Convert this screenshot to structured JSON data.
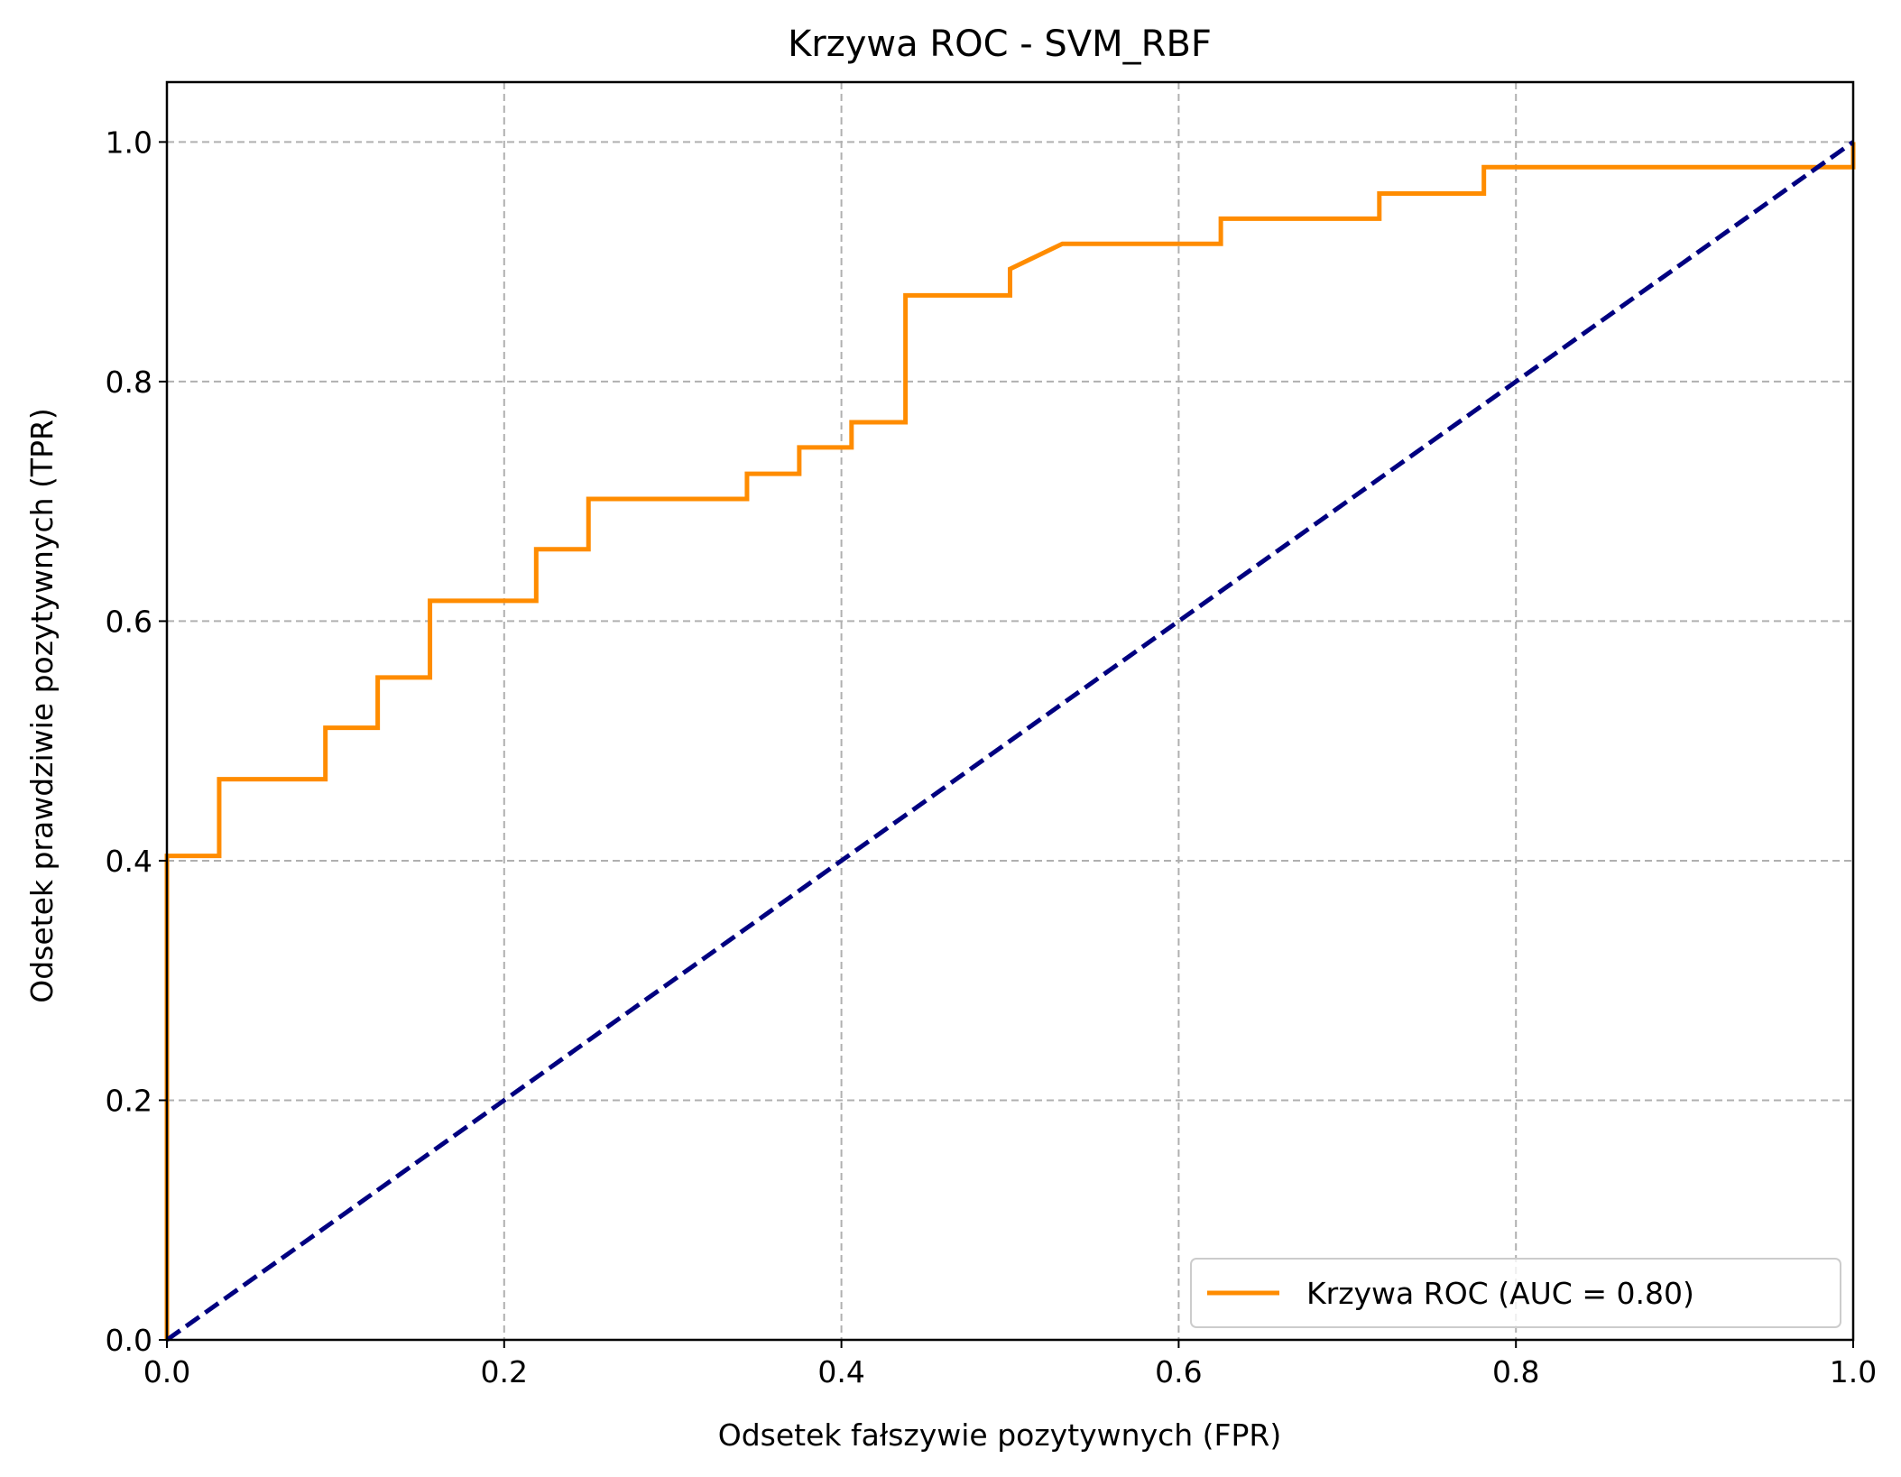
{
  "chart_data": {
    "type": "line",
    "title": "Krzywa ROC - SVM_RBF",
    "xlabel": "Odsetek fałszywie pozytywnych (FPR)",
    "ylabel": "Odsetek prawdziwie pozytywnych (TPR)",
    "xlim": [
      0.0,
      1.0
    ],
    "ylim": [
      0.0,
      1.05
    ],
    "x_ticks": [
      0.0,
      0.2,
      0.4,
      0.6,
      0.8,
      1.0
    ],
    "x_tick_labels": [
      "0.0",
      "0.2",
      "0.4",
      "0.6",
      "0.8",
      "1.0"
    ],
    "y_ticks": [
      0.0,
      0.2,
      0.4,
      0.6,
      0.8,
      1.0
    ],
    "y_tick_labels": [
      "0.0",
      "0.2",
      "0.4",
      "0.6",
      "0.8",
      "1.0"
    ],
    "grid": true,
    "legend_position": "lower right",
    "series": [
      {
        "name": "Krzywa ROC (AUC = 0.80)",
        "color": "#ff8c00",
        "style": "solid",
        "x": [
          0.0,
          0.0,
          0.031,
          0.031,
          0.094,
          0.094,
          0.125,
          0.125,
          0.156,
          0.156,
          0.219,
          0.219,
          0.25,
          0.25,
          0.344,
          0.344,
          0.375,
          0.375,
          0.406,
          0.406,
          0.438,
          0.438,
          0.5,
          0.5,
          0.531,
          0.625,
          0.625,
          0.719,
          0.719,
          0.781,
          0.781,
          1.0,
          1.0
        ],
        "y": [
          0.0,
          0.404,
          0.404,
          0.468,
          0.468,
          0.511,
          0.511,
          0.553,
          0.553,
          0.617,
          0.617,
          0.66,
          0.66,
          0.702,
          0.702,
          0.723,
          0.723,
          0.745,
          0.745,
          0.766,
          0.766,
          0.872,
          0.872,
          0.894,
          0.915,
          0.915,
          0.936,
          0.936,
          0.957,
          0.957,
          0.979,
          0.979,
          1.0
        ]
      },
      {
        "name": "",
        "color": "#000080",
        "style": "dashed",
        "x": [
          0.0,
          1.0
        ],
        "y": [
          0.0,
          1.0
        ]
      }
    ]
  }
}
